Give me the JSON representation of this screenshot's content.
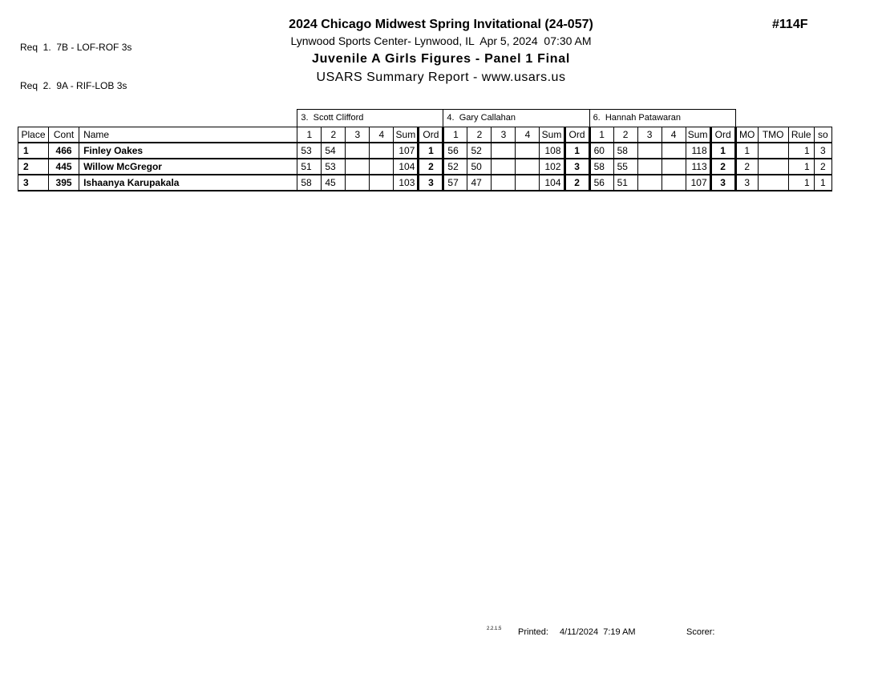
{
  "header": {
    "requirements": [
      "Req  1.  7B - LOF-ROF 3s",
      "Req  2.  9A - RIF-LOB 3s"
    ],
    "title": "2024 Chicago Midwest Spring Invitational (24-057)",
    "venue_line": "Lynwood Sports Center- Lynwood, IL  Apr 5, 2024  07:30 AM",
    "event_title": "Juvenile A Girls Figures - Panel 1 Final",
    "report_line": "USARS Summary Report - www.usars.us",
    "doc_number": "#114F"
  },
  "table": {
    "judges": [
      "3.  Scott Clifford",
      "4.  Gary Callahan",
      "6.  Hannah Patawaran"
    ],
    "headers": {
      "place": "Place",
      "cont": "Cont",
      "name": "Name",
      "score_cols": [
        "1",
        "2",
        "3",
        "4",
        "Sum",
        "Ord"
      ],
      "mo": "MO",
      "tmo": "TMO",
      "rule": "Rule",
      "so": "so"
    },
    "rows": [
      {
        "place": "1",
        "cont": "466",
        "name": "Finley Oakes",
        "judges": [
          {
            "s1": "53",
            "s2": "54",
            "s3": "",
            "s4": "",
            "sum": "107",
            "ord": "1"
          },
          {
            "s1": "56",
            "s2": "52",
            "s3": "",
            "s4": "",
            "sum": "108",
            "ord": "1"
          },
          {
            "s1": "60",
            "s2": "58",
            "s3": "",
            "s4": "",
            "sum": "118",
            "ord": "1"
          }
        ],
        "mo": "1",
        "tmo": "",
        "rule": "1",
        "so": "3"
      },
      {
        "place": "2",
        "cont": "445",
        "name": "Willow McGregor",
        "judges": [
          {
            "s1": "51",
            "s2": "53",
            "s3": "",
            "s4": "",
            "sum": "104",
            "ord": "2"
          },
          {
            "s1": "52",
            "s2": "50",
            "s3": "",
            "s4": "",
            "sum": "102",
            "ord": "3"
          },
          {
            "s1": "58",
            "s2": "55",
            "s3": "",
            "s4": "",
            "sum": "113",
            "ord": "2"
          }
        ],
        "mo": "2",
        "tmo": "",
        "rule": "1",
        "so": "2"
      },
      {
        "place": "3",
        "cont": "395",
        "name": "Ishaanya Karupakala",
        "judges": [
          {
            "s1": "58",
            "s2": "45",
            "s3": "",
            "s4": "",
            "sum": "103",
            "ord": "3"
          },
          {
            "s1": "57",
            "s2": "47",
            "s3": "",
            "s4": "",
            "sum": "104",
            "ord": "2"
          },
          {
            "s1": "56",
            "s2": "51",
            "s3": "",
            "s4": "",
            "sum": "107",
            "ord": "3"
          }
        ],
        "mo": "3",
        "tmo": "",
        "rule": "1",
        "so": "1"
      }
    ]
  },
  "footer": {
    "version": "2.2.1.5",
    "printed_label": "Printed:",
    "printed_value": "4/11/2024  7:19 AM",
    "scorer_label": "Scorer:"
  }
}
